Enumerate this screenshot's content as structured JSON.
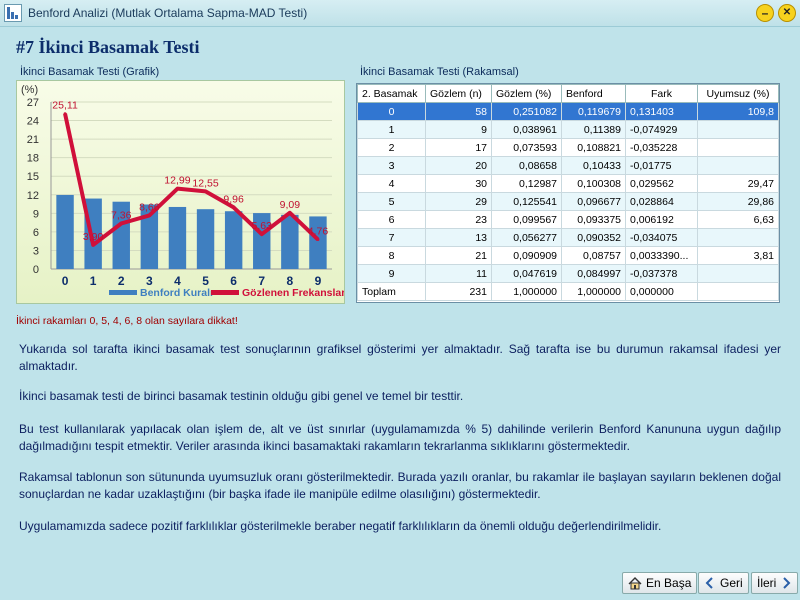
{
  "window": {
    "title": "Benford Analizi (Mutlak Ortalama Sapma-MAD Testi)",
    "minimize_label": "–",
    "close_label": "✕"
  },
  "page": {
    "title": "#7 İkinci Basamak Testi"
  },
  "chart_group": {
    "label": "İkinci Basamak Testi (Grafik)"
  },
  "table_group": {
    "label": "İkinci Basamak Testi (Rakamsal)"
  },
  "chart_data": {
    "type": "bar",
    "ylabel": "(%)",
    "ylim": [
      0,
      27
    ],
    "yticks": [
      0,
      3,
      6,
      9,
      12,
      15,
      18,
      21,
      24,
      27
    ],
    "categories": [
      "0",
      "1",
      "2",
      "3",
      "4",
      "5",
      "6",
      "7",
      "8",
      "9"
    ],
    "series": [
      {
        "name": "Benford Kuralı",
        "kind": "bar",
        "color": "#3f7fc0",
        "values": [
          11.97,
          11.39,
          10.88,
          10.43,
          10.03,
          9.67,
          9.34,
          9.04,
          8.76,
          8.5
        ]
      },
      {
        "name": "Gözlenen Frekanslar",
        "kind": "line",
        "color": "#d0103a",
        "values": [
          25.11,
          3.9,
          7.36,
          8.66,
          12.99,
          12.55,
          9.96,
          5.63,
          9.09,
          4.76
        ],
        "labels": [
          "25,11",
          "3,90",
          "7,36",
          "8,66",
          "12,99",
          "12,55",
          "9,96",
          "5,63",
          "9,09",
          "4,76"
        ]
      }
    ],
    "legend_position": "bottom-right",
    "grid": true
  },
  "table": {
    "headers": [
      "2. Basamak",
      "Gözlem (n)",
      "Gözlem (%)",
      "Benford",
      "Fark",
      "Uyumsuz (%)"
    ],
    "rows": [
      [
        "0",
        "58",
        "0,251082",
        "0,119679",
        "0,131403",
        "109,8"
      ],
      [
        "1",
        "9",
        "0,038961",
        "0,11389",
        "-0,074929",
        ""
      ],
      [
        "2",
        "17",
        "0,073593",
        "0,108821",
        "-0,035228",
        ""
      ],
      [
        "3",
        "20",
        "0,08658",
        "0,10433",
        "-0,01775",
        ""
      ],
      [
        "4",
        "30",
        "0,12987",
        "0,100308",
        "0,029562",
        "29,47"
      ],
      [
        "5",
        "29",
        "0,125541",
        "0,096677",
        "0,028864",
        "29,86"
      ],
      [
        "6",
        "23",
        "0,099567",
        "0,093375",
        "0,006192",
        "6,63"
      ],
      [
        "7",
        "13",
        "0,056277",
        "0,090352",
        "-0,034075",
        ""
      ],
      [
        "8",
        "21",
        "0,090909",
        "0,08757",
        "0,0033390...",
        "3,81"
      ],
      [
        "9",
        "11",
        "0,047619",
        "0,084997",
        "-0,037378",
        ""
      ],
      [
        "Toplam",
        "231",
        "1,000000",
        "1,000000",
        "0,000000",
        ""
      ]
    ],
    "selected_row": 0
  },
  "warning": "İkinci rakamları 0, 5, 4, 6, 8 olan sayılara dikkat!",
  "paragraphs": [
    "Yukarıda sol tarafta ikinci basamak test sonuçlarının grafiksel gösterimi yer almaktadır. Sağ tarafta ise bu durumun rakamsal ifadesi yer almaktadır.",
    "İkinci basamak testi de birinci basamak testinin olduğu gibi genel ve temel bir testtir.",
    "Bu test kullanılarak yapılacak olan işlem de, alt ve üst sınırlar (uygulamamızda % 5) dahilinde verilerin Benford Kanununa uygun dağılıp dağılmadığını tespit etmektir. Veriler arasında ikinci basamaktaki rakamların tekrarlanma sıklıklarını göstermektedir.",
    "Rakamsal tablonun son sütununda uyumsuzluk oranı gösterilmektedir. Burada yazılı oranlar, bu rakamlar ile başlayan sayıların beklenen doğal sonuçlardan ne kadar uzaklaştığını (bir başka ifade ile manipüle edilme olasılığını) göstermektedir.",
    "Uygulamamızda sadece pozitif farklılıklar gösterilmekle beraber negatif farklılıkların da önemli olduğu değerlendirilmelidir."
  ],
  "nav": {
    "home_label": "En Başa",
    "back_label": "Geri",
    "next_label": "İleri"
  }
}
